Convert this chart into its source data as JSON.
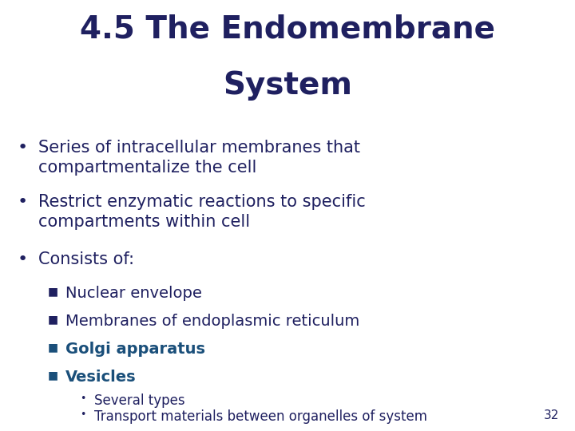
{
  "title_line1": "4.5 The Endomembrane",
  "title_line2": "System",
  "title_color": "#1f2060",
  "title_fontsize": 28,
  "background_color": "#ffffff",
  "text_color": "#1f2060",
  "highlight_color": "#1a4f7a",
  "body_fontsize": 15,
  "sub_fontsize": 14,
  "subsub_fontsize": 12,
  "page_number": "32",
  "bullet_items": [
    {
      "level": 1,
      "text": "Series of intracellular membranes that\ncompartmentalize the cell",
      "bold": false,
      "color": "#1f2060"
    },
    {
      "level": 1,
      "text": "Restrict enzymatic reactions to specific\ncompartments within cell",
      "bold": false,
      "color": "#1f2060"
    },
    {
      "level": 1,
      "text": "Consists of:",
      "bold": false,
      "color": "#1f2060"
    },
    {
      "level": 2,
      "text": "Nuclear envelope",
      "bold": false,
      "color": "#1f2060"
    },
    {
      "level": 2,
      "text": "Membranes of endoplasmic reticulum",
      "bold": false,
      "color": "#1f2060"
    },
    {
      "level": 2,
      "text": "Golgi apparatus",
      "bold": true,
      "color": "#1a4f7a"
    },
    {
      "level": 2,
      "text": "Vesicles",
      "bold": true,
      "color": "#1a4f7a"
    },
    {
      "level": 3,
      "text": "Several types",
      "bold": false,
      "color": "#1f2060"
    },
    {
      "level": 3,
      "text": "Transport materials between organelles of system",
      "bold": false,
      "color": "#1f2060"
    }
  ]
}
